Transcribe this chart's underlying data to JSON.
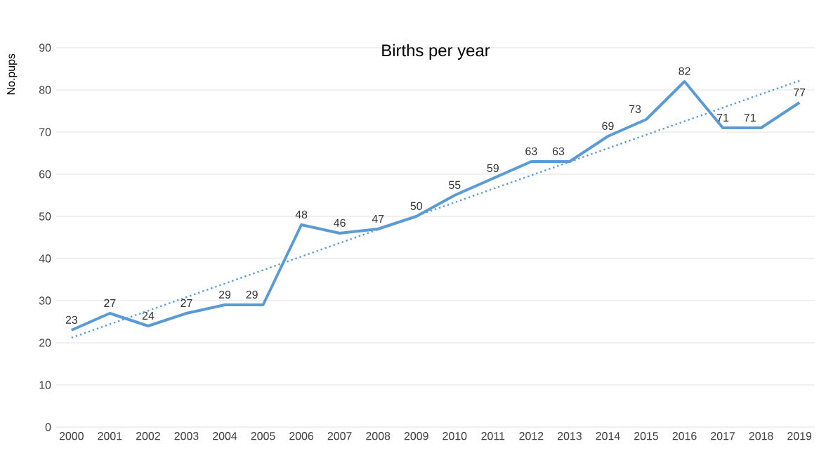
{
  "chart_data": {
    "type": "line",
    "title": "Births per year",
    "ylabel": "No.pups",
    "x": [
      2000,
      2001,
      2002,
      2003,
      2004,
      2005,
      2006,
      2007,
      2008,
      2009,
      2010,
      2011,
      2012,
      2013,
      2014,
      2015,
      2016,
      2017,
      2018,
      2019
    ],
    "xlim": [
      1999.6,
      2019.4
    ],
    "xticks": [
      2000,
      2001,
      2002,
      2003,
      2004,
      2005,
      2006,
      2007,
      2008,
      2009,
      2010,
      2011,
      2012,
      2013,
      2014,
      2015,
      2016,
      2017,
      2018,
      2019
    ],
    "ylim": [
      0,
      90
    ],
    "yticks": [
      0,
      10,
      20,
      30,
      40,
      50,
      60,
      70,
      80,
      90
    ],
    "grid": "y",
    "series": [
      {
        "color": "#5b9bd5",
        "values": [
          23,
          27,
          24,
          27,
          29,
          29,
          48,
          46,
          47,
          50,
          55,
          59,
          63,
          63,
          69,
          73,
          82,
          71,
          71,
          77
        ],
        "value_labels": [
          "23",
          "27",
          "24",
          "27",
          "29",
          "29",
          "48",
          "46",
          "47",
          "50",
          "55",
          "59",
          "63",
          "63",
          "69",
          "73",
          "82",
          "71",
          "71",
          "77"
        ]
      },
      {
        "type": "line",
        "color": "#5b9bd5",
        "line_style": "dotted",
        "x": [
          2000,
          2019
        ],
        "values": [
          21.2,
          82.2
        ]
      }
    ]
  }
}
